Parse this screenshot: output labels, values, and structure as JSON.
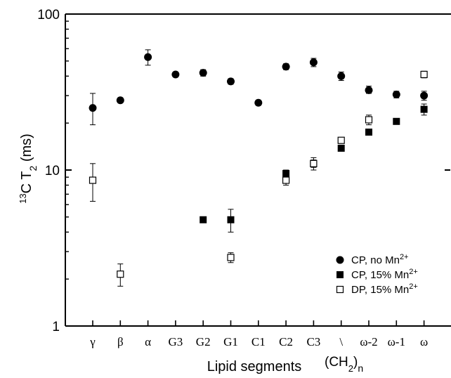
{
  "chart_data": {
    "type": "scatter",
    "xlabel": "Lipid segments",
    "ylabel_parts": {
      "base": "C T",
      "pre_sup": "13",
      "sub": "2",
      "post": " (ms)"
    },
    "yscale": "log",
    "ylim": [
      1,
      100
    ],
    "yticks": [
      {
        "value": 1,
        "label": "1"
      },
      {
        "value": 10,
        "label": "10"
      },
      {
        "value": 100,
        "label": "100"
      }
    ],
    "categories": [
      "γ",
      "β",
      "α",
      "G3",
      "G2",
      "G1",
      "C1",
      "C2",
      "C3",
      "\\",
      "ω-2",
      "ω-1",
      "ω"
    ],
    "extra_label": {
      "base": "(CH",
      "sub": "2",
      "post": ")",
      "tail": "n"
    },
    "legend": "bottom-right",
    "series": [
      {
        "name_parts": {
          "text": "CP, no Mn",
          "sup": "2+"
        },
        "marker": "filled-circle",
        "points": [
          {
            "cat": "γ",
            "y": 25.0,
            "err_low": 19.5,
            "err_high": 31.0
          },
          {
            "cat": "β",
            "y": 28.0,
            "err_low": 27.0,
            "err_high": 29.0
          },
          {
            "cat": "α",
            "y": 53.0,
            "err_low": 47.0,
            "err_high": 59.0
          },
          {
            "cat": "G3",
            "y": 41.0,
            "err_low": 39.5,
            "err_high": 42.5
          },
          {
            "cat": "G2",
            "y": 42.0,
            "err_low": 40.0,
            "err_high": 44.0
          },
          {
            "cat": "G1",
            "y": 37.0,
            "err_low": 35.5,
            "err_high": 38.5
          },
          {
            "cat": "C1",
            "y": 27.0,
            "err_low": 26.0,
            "err_high": 28.0
          },
          {
            "cat": "C2",
            "y": 46.0,
            "err_low": 44.0,
            "err_high": 48.0
          },
          {
            "cat": "C3",
            "y": 49.0,
            "err_low": 46.0,
            "err_high": 52.0
          },
          {
            "cat": "\\",
            "y": 40.0,
            "err_low": 37.5,
            "err_high": 42.5
          },
          {
            "cat": "ω-2",
            "y": 32.5,
            "err_low": 31.0,
            "err_high": 34.5
          },
          {
            "cat": "ω-1",
            "y": 30.5,
            "err_low": 29.0,
            "err_high": 32.0
          },
          {
            "cat": "ω",
            "y": 30.0,
            "err_low": 28.0,
            "err_high": 32.0
          }
        ]
      },
      {
        "name_parts": {
          "text": "CP, 15% Mn",
          "sup": "2+"
        },
        "marker": "filled-square",
        "points": [
          {
            "cat": "G2",
            "y": 4.8,
            "err_low": 4.7,
            "err_high": 4.9
          },
          {
            "cat": "G1",
            "y": 4.8,
            "err_low": 4.0,
            "err_high": 5.6
          },
          {
            "cat": "C2",
            "y": 9.5,
            "err_low": 9.0,
            "err_high": 10.0
          },
          {
            "cat": "C3",
            "y": 11.0,
            "err_low": 10.0,
            "err_high": 12.0
          },
          {
            "cat": "\\",
            "y": 13.8,
            "err_low": 13.4,
            "err_high": 14.2
          },
          {
            "cat": "ω-2",
            "y": 17.5,
            "err_low": 16.8,
            "err_high": 18.2
          },
          {
            "cat": "ω-1",
            "y": 20.5,
            "err_low": 19.8,
            "err_high": 21.2
          },
          {
            "cat": "ω",
            "y": 24.5,
            "err_low": 22.5,
            "err_high": 26.5
          }
        ]
      },
      {
        "name_parts": {
          "text": "DP, 15% Mn",
          "sup": "2+"
        },
        "marker": "open-square",
        "points": [
          {
            "cat": "γ",
            "y": 8.6,
            "err_low": 6.3,
            "err_high": 11.0
          },
          {
            "cat": "β",
            "y": 2.15,
            "err_low": 1.8,
            "err_high": 2.5
          },
          {
            "cat": "G1",
            "y": 2.75,
            "err_low": 2.55,
            "err_high": 2.95
          },
          {
            "cat": "C2",
            "y": 8.6,
            "err_low": 8.0,
            "err_high": 9.2
          },
          {
            "cat": "C3",
            "y": 11.0,
            "err_low": 10.4,
            "err_high": 11.6
          },
          {
            "cat": "\\",
            "y": 15.5,
            "err_low": 15.0,
            "err_high": 16.0
          },
          {
            "cat": "ω-2",
            "y": 21.0,
            "err_low": 19.5,
            "err_high": 22.5
          },
          {
            "cat": "ω",
            "y": 41.0,
            "err_low": 39.0,
            "err_high": 43.0
          }
        ]
      }
    ]
  }
}
